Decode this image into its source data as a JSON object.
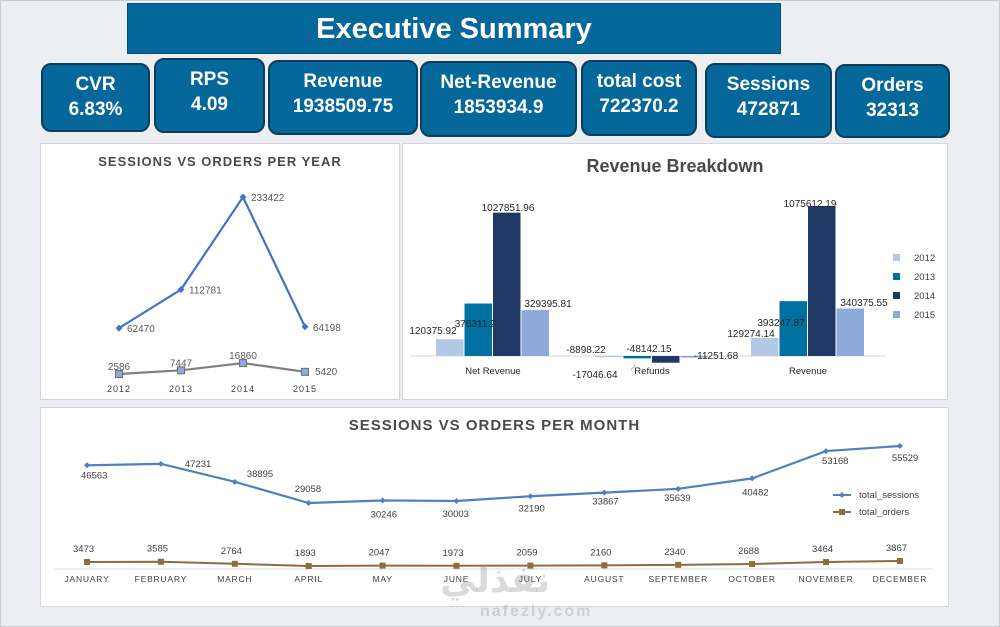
{
  "header": {
    "title": "Executive Summary"
  },
  "kpis": [
    {
      "label": "CVR",
      "value": "6.83%"
    },
    {
      "label": "RPS",
      "value": "4.09"
    },
    {
      "label": "Revenue",
      "value": "1938509.75"
    },
    {
      "label": "Net-Revenue",
      "value": "1853934.9"
    },
    {
      "label": "total cost",
      "value": "722370.2"
    },
    {
      "label": "Sessions",
      "value": "472871"
    },
    {
      "label": "Orders",
      "value": "32313"
    }
  ],
  "colors": {
    "accent": "#06679b",
    "sessions_line": "#4472c4",
    "orders_line_year": "#7f7f7f",
    "month_sessions": "#4f81bd",
    "month_orders": "#8c6d3f",
    "y2012": "#b4c7e7",
    "y2013": "#0070a0",
    "y2014": "#203864",
    "y2015": "#8eaadb"
  },
  "watermark": {
    "text": "نفذلي",
    "sub": "nafezly.com"
  },
  "chart_data": [
    {
      "type": "line",
      "title": "SESSIONS VS ORDERS PER YEAR",
      "categories": [
        "2012",
        "2013",
        "2014",
        "2015"
      ],
      "series": [
        {
          "name": "sessions",
          "values": [
            62470,
            112781,
            233422,
            64198
          ]
        },
        {
          "name": "orders",
          "values": [
            2586,
            7447,
            16860,
            5420
          ]
        }
      ],
      "ylim": [
        0,
        240000
      ]
    },
    {
      "type": "bar",
      "title": "Revenue Breakdown",
      "categories": [
        "Net Revenue",
        "Refunds",
        "Revenue"
      ],
      "series": [
        {
          "name": "2012",
          "values": [
            120375.92,
            -8898.22,
            129274.14
          ]
        },
        {
          "name": "2013",
          "values": [
            376311.21,
            -17046.64,
            393247.87
          ]
        },
        {
          "name": "2014",
          "values": [
            1027851.96,
            -48142.15,
            1075612.19
          ]
        },
        {
          "name": "2015",
          "values": [
            329395.81,
            -11251.68,
            340375.55
          ]
        }
      ],
      "ylim": [
        -60000,
        1100000
      ],
      "legend": "right"
    },
    {
      "type": "line",
      "title": "SESSIONS VS ORDERS PER MONTH",
      "categories": [
        "JANUARY",
        "FEBRUARY",
        "MARCH",
        "APRIL",
        "MAY",
        "JUNE",
        "JULY",
        "AUGUST",
        "SEPTEMBER",
        "OCTOBER",
        "NOVEMBER",
        "DECEMBER"
      ],
      "series": [
        {
          "name": "total_sessions",
          "values": [
            46563,
            47231,
            38895,
            29058,
            30246,
            30003,
            32190,
            33867,
            35639,
            40482,
            53168,
            55529
          ]
        },
        {
          "name": "total_orders",
          "values": [
            3473,
            3585,
            2764,
            1893,
            2047,
            1973,
            2059,
            2160,
            2340,
            2688,
            3464,
            3867
          ]
        }
      ],
      "ylim": [
        0,
        56000
      ],
      "legend": "right"
    }
  ]
}
